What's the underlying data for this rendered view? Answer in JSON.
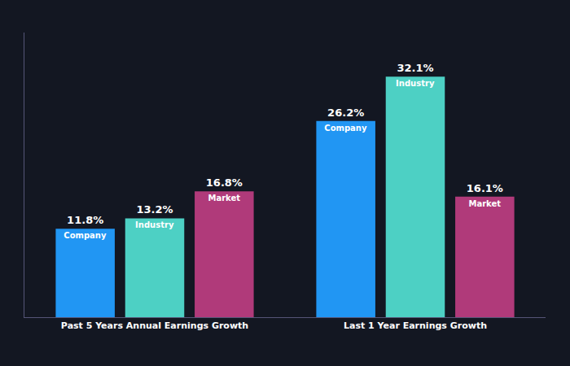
{
  "chart_data": {
    "type": "bar",
    "categories": [
      "Past 5 Years Annual Earnings Growth",
      "Last 1 Year Earnings Growth"
    ],
    "series": [
      {
        "name": "Company",
        "color": "#2196f3",
        "values": [
          11.8,
          26.2
        ],
        "value_labels": [
          "11.8%",
          "26.2%"
        ]
      },
      {
        "name": "Industry",
        "color": "#4dd0c4",
        "values": [
          13.2,
          32.1
        ],
        "value_labels": [
          "13.2%",
          "32.1%"
        ]
      },
      {
        "name": "Market",
        "color": "#b03a7a",
        "values": [
          16.8,
          16.1
        ],
        "value_labels": [
          "16.8%",
          "16.1%"
        ]
      }
    ],
    "ylim": [
      0,
      38
    ],
    "data_labels": true,
    "tick_labels": false,
    "grid": false
  }
}
